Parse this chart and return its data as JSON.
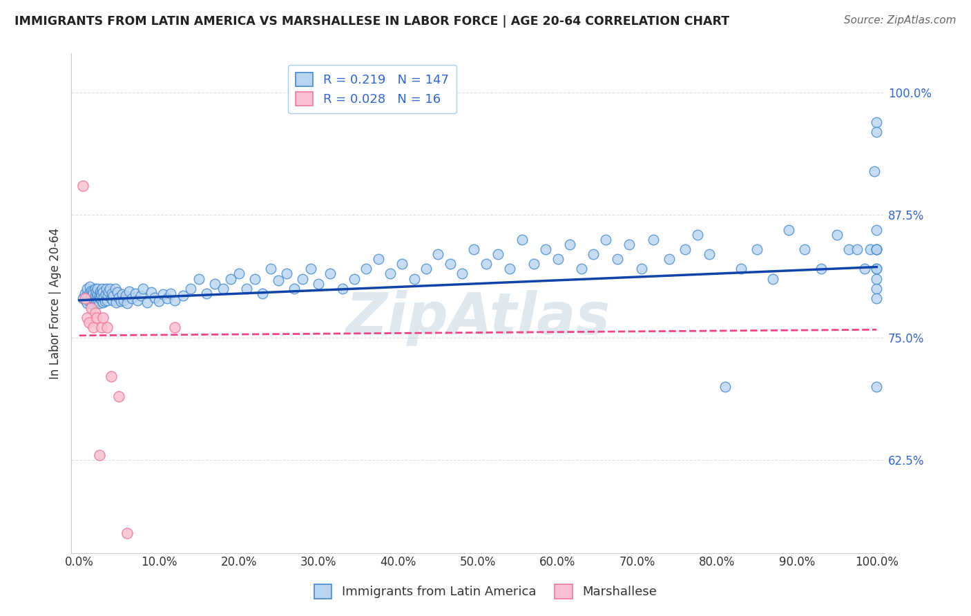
{
  "title": "IMMIGRANTS FROM LATIN AMERICA VS MARSHALLESE IN LABOR FORCE | AGE 20-64 CORRELATION CHART",
  "source": "Source: ZipAtlas.com",
  "ylabel": "In Labor Force | Age 20-64",
  "blue_R": 0.219,
  "blue_N": 147,
  "pink_R": 0.028,
  "pink_N": 16,
  "blue_label": "Immigrants from Latin America",
  "pink_label": "Marshallese",
  "xlim": [
    -0.01,
    1.01
  ],
  "ylim": [
    0.53,
    1.04
  ],
  "yticks": [
    0.625,
    0.75,
    0.875,
    1.0
  ],
  "ytick_labels": [
    "62.5%",
    "75.0%",
    "87.5%",
    "100.0%"
  ],
  "xticks": [
    0.0,
    0.1,
    0.2,
    0.3,
    0.4,
    0.5,
    0.6,
    0.7,
    0.8,
    0.9,
    1.0
  ],
  "xtick_labels": [
    "0.0%",
    "10.0%",
    "20.0%",
    "30.0%",
    "40.0%",
    "50.0%",
    "60.0%",
    "70.0%",
    "80.0%",
    "90.0%",
    "100.0%"
  ],
  "blue_color": "#B8D4F0",
  "blue_edge_color": "#4488CC",
  "blue_line_color": "#1144AA",
  "pink_color": "#F8C0D0",
  "pink_edge_color": "#EE7799",
  "pink_line_color": "#EE4488",
  "watermark": "ZipAtlas",
  "blue_line_x0": 0.0,
  "blue_line_y0": 0.788,
  "blue_line_x1": 1.0,
  "blue_line_y1": 0.822,
  "pink_line_x0": 0.0,
  "pink_line_y0": 0.752,
  "pink_line_x1": 1.0,
  "pink_line_y1": 0.758,
  "blue_x": [
    0.005,
    0.007,
    0.008,
    0.009,
    0.01,
    0.01,
    0.011,
    0.012,
    0.013,
    0.013,
    0.014,
    0.015,
    0.015,
    0.016,
    0.017,
    0.018,
    0.018,
    0.019,
    0.02,
    0.02,
    0.021,
    0.021,
    0.022,
    0.022,
    0.023,
    0.023,
    0.024,
    0.025,
    0.025,
    0.026,
    0.026,
    0.027,
    0.028,
    0.028,
    0.029,
    0.03,
    0.03,
    0.031,
    0.032,
    0.033,
    0.034,
    0.035,
    0.036,
    0.037,
    0.038,
    0.04,
    0.041,
    0.042,
    0.043,
    0.045,
    0.046,
    0.048,
    0.05,
    0.052,
    0.054,
    0.056,
    0.058,
    0.06,
    0.063,
    0.066,
    0.07,
    0.073,
    0.077,
    0.08,
    0.085,
    0.09,
    0.095,
    0.1,
    0.105,
    0.11,
    0.115,
    0.12,
    0.13,
    0.14,
    0.15,
    0.16,
    0.17,
    0.18,
    0.19,
    0.2,
    0.21,
    0.22,
    0.23,
    0.24,
    0.25,
    0.26,
    0.27,
    0.28,
    0.29,
    0.3,
    0.315,
    0.33,
    0.345,
    0.36,
    0.375,
    0.39,
    0.405,
    0.42,
    0.435,
    0.45,
    0.465,
    0.48,
    0.495,
    0.51,
    0.525,
    0.54,
    0.555,
    0.57,
    0.585,
    0.6,
    0.615,
    0.63,
    0.645,
    0.66,
    0.675,
    0.69,
    0.705,
    0.72,
    0.74,
    0.76,
    0.775,
    0.79,
    0.81,
    0.83,
    0.85,
    0.87,
    0.89,
    0.91,
    0.93,
    0.95,
    0.965,
    0.975,
    0.985,
    0.992,
    0.997,
    1.0,
    1.0,
    1.0,
    1.0,
    1.0,
    1.0,
    1.0,
    1.0,
    1.0,
    1.0,
    1.0,
    1.0
  ],
  "blue_y": [
    0.79,
    0.795,
    0.788,
    0.793,
    0.785,
    0.8,
    0.792,
    0.787,
    0.796,
    0.802,
    0.789,
    0.793,
    0.798,
    0.784,
    0.797,
    0.79,
    0.795,
    0.788,
    0.793,
    0.8,
    0.786,
    0.796,
    0.791,
    0.787,
    0.794,
    0.8,
    0.788,
    0.793,
    0.785,
    0.797,
    0.79,
    0.795,
    0.788,
    0.793,
    0.8,
    0.786,
    0.796,
    0.791,
    0.787,
    0.794,
    0.8,
    0.788,
    0.793,
    0.797,
    0.8,
    0.79,
    0.795,
    0.788,
    0.793,
    0.8,
    0.786,
    0.796,
    0.791,
    0.787,
    0.794,
    0.788,
    0.793,
    0.785,
    0.797,
    0.79,
    0.795,
    0.788,
    0.793,
    0.8,
    0.786,
    0.796,
    0.791,
    0.787,
    0.794,
    0.79,
    0.795,
    0.788,
    0.793,
    0.8,
    0.81,
    0.795,
    0.805,
    0.8,
    0.81,
    0.815,
    0.8,
    0.81,
    0.795,
    0.82,
    0.808,
    0.815,
    0.8,
    0.81,
    0.82,
    0.805,
    0.815,
    0.8,
    0.81,
    0.82,
    0.83,
    0.815,
    0.825,
    0.81,
    0.82,
    0.835,
    0.825,
    0.815,
    0.84,
    0.825,
    0.835,
    0.82,
    0.85,
    0.825,
    0.84,
    0.83,
    0.845,
    0.82,
    0.835,
    0.85,
    0.83,
    0.845,
    0.82,
    0.85,
    0.83,
    0.84,
    0.855,
    0.835,
    0.7,
    0.82,
    0.84,
    0.81,
    0.86,
    0.84,
    0.82,
    0.855,
    0.84,
    0.84,
    0.82,
    0.84,
    0.92,
    0.8,
    0.79,
    0.81,
    0.82,
    0.84,
    0.84,
    0.7,
    0.82,
    0.84,
    0.97,
    0.86,
    0.96
  ],
  "pink_x": [
    0.005,
    0.007,
    0.01,
    0.012,
    0.015,
    0.018,
    0.02,
    0.022,
    0.025,
    0.028,
    0.03,
    0.035,
    0.04,
    0.05,
    0.06,
    0.12
  ],
  "pink_y": [
    0.905,
    0.79,
    0.77,
    0.765,
    0.78,
    0.76,
    0.775,
    0.77,
    0.63,
    0.76,
    0.77,
    0.76,
    0.71,
    0.69,
    0.55,
    0.76
  ]
}
